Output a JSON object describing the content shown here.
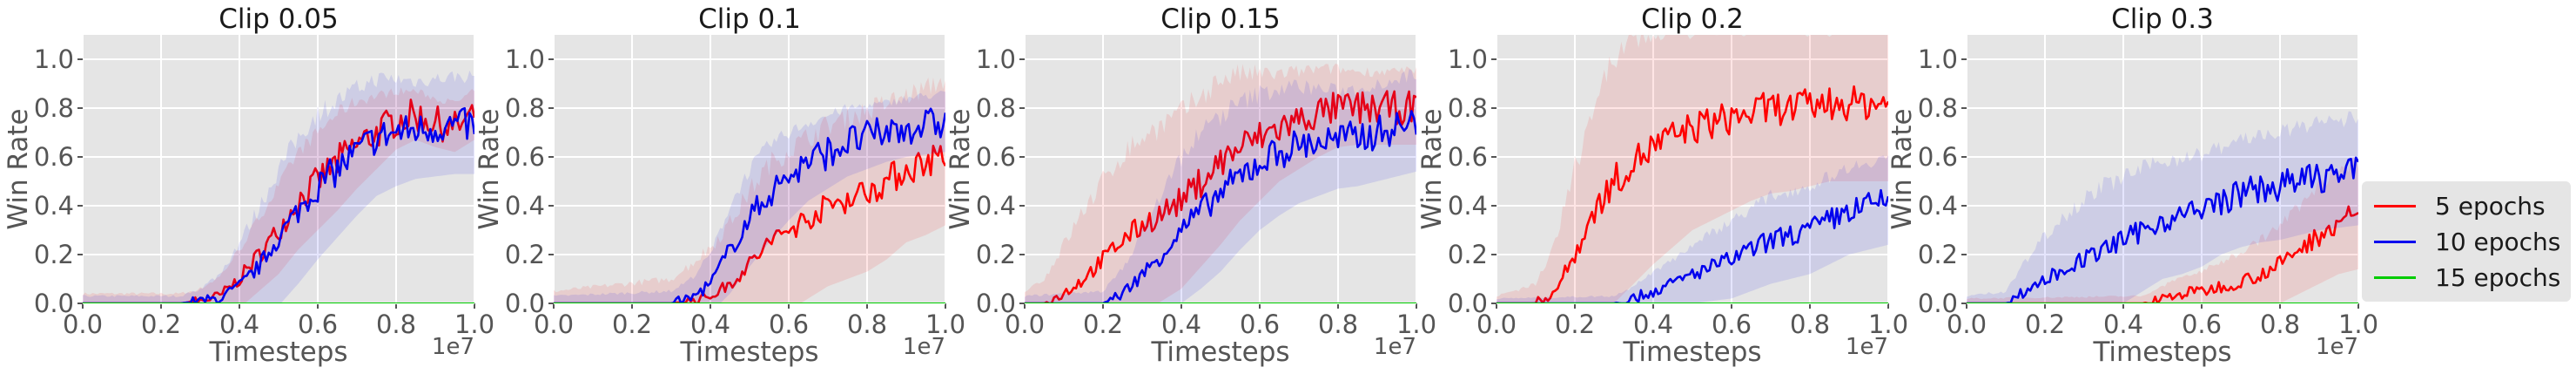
{
  "chart_data": [
    {
      "type": "line",
      "title": "Clip 0.05",
      "xlabel": "Timesteps",
      "ylabel": "Win Rate",
      "x_multiplier": "1e7",
      "xlim": [
        0,
        1.0
      ],
      "ylim": [
        0,
        1.1
      ],
      "xticks": [
        "0.0",
        "0.2",
        "0.4",
        "0.6",
        "0.8",
        "1.0"
      ],
      "yticks": [
        "0.0",
        "0.2",
        "0.4",
        "0.6",
        "0.8",
        "1.0"
      ],
      "series": [
        {
          "name": "5 epochs",
          "color": "#ff0000",
          "x": [
            0,
            0.25,
            0.3,
            0.35,
            0.4,
            0.45,
            0.5,
            0.55,
            0.6,
            0.65,
            0.7,
            0.75,
            0.8,
            0.85,
            0.9,
            0.95,
            1.0
          ],
          "y": [
            0,
            0,
            0.01,
            0.03,
            0.1,
            0.2,
            0.3,
            0.42,
            0.5,
            0.58,
            0.65,
            0.7,
            0.75,
            0.77,
            0.74,
            0.72,
            0.77
          ],
          "band": [
            0.04,
            0.04,
            0.05,
            0.08,
            0.12,
            0.15,
            0.18,
            0.2,
            0.2,
            0.2,
            0.18,
            0.15,
            0.12,
            0.1,
            0.1,
            0.1,
            0.1
          ]
        },
        {
          "name": "10 epochs",
          "color": "#0000ee",
          "x": [
            0,
            0.25,
            0.3,
            0.35,
            0.4,
            0.45,
            0.5,
            0.55,
            0.6,
            0.65,
            0.7,
            0.75,
            0.8,
            0.85,
            0.9,
            0.95,
            1.0
          ],
          "y": [
            0,
            0,
            0.01,
            0.02,
            0.07,
            0.15,
            0.27,
            0.38,
            0.48,
            0.55,
            0.62,
            0.68,
            0.7,
            0.71,
            0.72,
            0.73,
            0.73
          ],
          "band": [
            0.03,
            0.03,
            0.05,
            0.1,
            0.18,
            0.24,
            0.28,
            0.3,
            0.3,
            0.28,
            0.26,
            0.24,
            0.22,
            0.2,
            0.2,
            0.2,
            0.2
          ]
        },
        {
          "name": "15 epochs",
          "color": "#00cc00",
          "x": [
            0,
            1.0
          ],
          "y": [
            0,
            0
          ],
          "band": [
            0,
            0
          ]
        }
      ]
    },
    {
      "type": "line",
      "title": "Clip 0.1",
      "xlabel": "Timesteps",
      "ylabel": "Win Rate",
      "x_multiplier": "1e7",
      "xlim": [
        0,
        1.0
      ],
      "ylim": [
        0,
        1.1
      ],
      "xticks": [
        "0.0",
        "0.2",
        "0.4",
        "0.6",
        "0.8",
        "1.0"
      ],
      "yticks": [
        "0.0",
        "0.2",
        "0.4",
        "0.6",
        "0.8",
        "1.0"
      ],
      "series": [
        {
          "name": "5 epochs",
          "color": "#ff0000",
          "x": [
            0,
            0.3,
            0.35,
            0.4,
            0.45,
            0.5,
            0.55,
            0.6,
            0.65,
            0.7,
            0.75,
            0.8,
            0.85,
            0.9,
            0.95,
            1.0
          ],
          "y": [
            0,
            0,
            0.01,
            0.03,
            0.08,
            0.16,
            0.25,
            0.3,
            0.35,
            0.4,
            0.43,
            0.46,
            0.5,
            0.55,
            0.58,
            0.62
          ],
          "band": [
            0.05,
            0.1,
            0.15,
            0.2,
            0.25,
            0.3,
            0.32,
            0.33,
            0.33,
            0.33,
            0.33,
            0.33,
            0.32,
            0.3,
            0.3,
            0.3
          ]
        },
        {
          "name": "10 epochs",
          "color": "#0000ee",
          "x": [
            0,
            0.3,
            0.35,
            0.4,
            0.45,
            0.5,
            0.55,
            0.6,
            0.65,
            0.7,
            0.75,
            0.8,
            0.85,
            0.9,
            0.95,
            1.0
          ],
          "y": [
            0,
            0,
            0.02,
            0.08,
            0.22,
            0.35,
            0.45,
            0.52,
            0.58,
            0.62,
            0.66,
            0.68,
            0.7,
            0.72,
            0.73,
            0.74
          ],
          "band": [
            0.03,
            0.05,
            0.08,
            0.12,
            0.18,
            0.2,
            0.2,
            0.18,
            0.16,
            0.15,
            0.14,
            0.13,
            0.12,
            0.12,
            0.12,
            0.12
          ]
        },
        {
          "name": "15 epochs",
          "color": "#00cc00",
          "x": [
            0,
            1.0
          ],
          "y": [
            0,
            0
          ],
          "band": [
            0,
            0
          ]
        }
      ]
    },
    {
      "type": "line",
      "title": "Clip 0.15",
      "xlabel": "Timesteps",
      "ylabel": "Win Rate",
      "x_multiplier": "1e7",
      "xlim": [
        0,
        1.0
      ],
      "ylim": [
        0,
        1.1
      ],
      "xticks": [
        "0.0",
        "0.2",
        "0.4",
        "0.6",
        "0.8",
        "1.0"
      ],
      "yticks": [
        "0.0",
        "0.2",
        "0.4",
        "0.6",
        "0.8",
        "1.0"
      ],
      "series": [
        {
          "name": "5 epochs",
          "color": "#ff0000",
          "x": [
            0,
            0.05,
            0.1,
            0.15,
            0.2,
            0.25,
            0.3,
            0.35,
            0.4,
            0.45,
            0.5,
            0.55,
            0.6,
            0.65,
            0.7,
            0.75,
            0.8,
            0.85,
            0.9,
            0.95,
            1.0
          ],
          "y": [
            0,
            0,
            0.04,
            0.1,
            0.18,
            0.26,
            0.32,
            0.37,
            0.42,
            0.5,
            0.58,
            0.64,
            0.68,
            0.72,
            0.75,
            0.78,
            0.8,
            0.8,
            0.8,
            0.8,
            0.8
          ],
          "band": [
            0.05,
            0.1,
            0.2,
            0.28,
            0.32,
            0.35,
            0.36,
            0.36,
            0.36,
            0.35,
            0.34,
            0.3,
            0.26,
            0.22,
            0.2,
            0.18,
            0.16,
            0.15,
            0.15,
            0.15,
            0.15
          ]
        },
        {
          "name": "10 epochs",
          "color": "#0000ee",
          "x": [
            0,
            0.2,
            0.25,
            0.3,
            0.35,
            0.4,
            0.45,
            0.5,
            0.55,
            0.6,
            0.65,
            0.7,
            0.75,
            0.8,
            0.85,
            0.9,
            0.95,
            1.0
          ],
          "y": [
            0,
            0,
            0.04,
            0.12,
            0.2,
            0.3,
            0.38,
            0.45,
            0.52,
            0.58,
            0.62,
            0.65,
            0.66,
            0.67,
            0.68,
            0.7,
            0.72,
            0.74
          ],
          "band": [
            0.03,
            0.05,
            0.1,
            0.18,
            0.25,
            0.3,
            0.32,
            0.32,
            0.3,
            0.28,
            0.26,
            0.24,
            0.22,
            0.2,
            0.2,
            0.2,
            0.2,
            0.2
          ]
        },
        {
          "name": "15 epochs",
          "color": "#00cc00",
          "x": [
            0,
            1.0
          ],
          "y": [
            0,
            0
          ],
          "band": [
            0,
            0
          ]
        }
      ]
    },
    {
      "type": "line",
      "title": "Clip 0.2",
      "xlabel": "Timesteps",
      "ylabel": "Win Rate",
      "x_multiplier": "1e7",
      "xlim": [
        0,
        1.0
      ],
      "ylim": [
        0,
        1.1
      ],
      "xticks": [
        "0.0",
        "0.2",
        "0.4",
        "0.6",
        "0.8",
        "1.0"
      ],
      "yticks": [
        "0.0",
        "0.2",
        "0.4",
        "0.6",
        "0.8",
        "1.0"
      ],
      "series": [
        {
          "name": "5 epochs",
          "color": "#ff0000",
          "x": [
            0,
            0.1,
            0.15,
            0.2,
            0.25,
            0.3,
            0.35,
            0.4,
            0.45,
            0.5,
            0.55,
            0.6,
            0.65,
            0.7,
            0.75,
            0.8,
            0.85,
            0.9,
            0.95,
            1.0
          ],
          "y": [
            0,
            0,
            0.05,
            0.2,
            0.38,
            0.5,
            0.58,
            0.64,
            0.68,
            0.72,
            0.74,
            0.76,
            0.78,
            0.8,
            0.8,
            0.81,
            0.82,
            0.82,
            0.82,
            0.82
          ],
          "band": [
            0.03,
            0.08,
            0.2,
            0.35,
            0.45,
            0.5,
            0.5,
            0.48,
            0.45,
            0.42,
            0.4,
            0.38,
            0.36,
            0.35,
            0.34,
            0.33,
            0.32,
            0.32,
            0.32,
            0.32
          ]
        },
        {
          "name": "10 epochs",
          "color": "#0000ee",
          "x": [
            0,
            0.3,
            0.35,
            0.4,
            0.45,
            0.5,
            0.55,
            0.6,
            0.65,
            0.7,
            0.75,
            0.8,
            0.85,
            0.9,
            0.95,
            1.0
          ],
          "y": [
            0,
            0,
            0.02,
            0.05,
            0.08,
            0.12,
            0.15,
            0.18,
            0.22,
            0.26,
            0.28,
            0.3,
            0.34,
            0.38,
            0.4,
            0.42
          ],
          "band": [
            0.02,
            0.03,
            0.05,
            0.08,
            0.1,
            0.12,
            0.14,
            0.16,
            0.17,
            0.18,
            0.18,
            0.18,
            0.18,
            0.18,
            0.18,
            0.18
          ]
        },
        {
          "name": "15 epochs",
          "color": "#00cc00",
          "x": [
            0,
            1.0
          ],
          "y": [
            0,
            0
          ],
          "band": [
            0,
            0
          ]
        }
      ]
    },
    {
      "type": "line",
      "title": "Clip 0.3",
      "xlabel": "Timesteps",
      "ylabel": "Win Rate",
      "x_multiplier": "1e7",
      "xlim": [
        0,
        1.0
      ],
      "ylim": [
        0,
        1.1
      ],
      "xticks": [
        "0.0",
        "0.2",
        "0.4",
        "0.6",
        "0.8",
        "1.0"
      ],
      "yticks": [
        "0.0",
        "0.2",
        "0.4",
        "0.6",
        "0.8",
        "1.0"
      ],
      "series": [
        {
          "name": "5 epochs",
          "color": "#ff0000",
          "x": [
            0,
            0.45,
            0.5,
            0.55,
            0.6,
            0.65,
            0.7,
            0.75,
            0.8,
            0.85,
            0.9,
            0.95,
            1.0
          ],
          "y": [
            0,
            0,
            0.02,
            0.04,
            0.05,
            0.07,
            0.09,
            0.12,
            0.16,
            0.22,
            0.28,
            0.34,
            0.36
          ],
          "band": [
            0.02,
            0.03,
            0.05,
            0.07,
            0.08,
            0.1,
            0.12,
            0.14,
            0.16,
            0.18,
            0.2,
            0.22,
            0.22
          ]
        },
        {
          "name": "10 epochs",
          "color": "#0000ee",
          "x": [
            0,
            0.1,
            0.15,
            0.2,
            0.25,
            0.3,
            0.35,
            0.4,
            0.45,
            0.5,
            0.55,
            0.6,
            0.65,
            0.7,
            0.75,
            0.8,
            0.85,
            0.9,
            0.95,
            1.0
          ],
          "y": [
            0,
            0,
            0.05,
            0.1,
            0.14,
            0.18,
            0.22,
            0.26,
            0.3,
            0.34,
            0.36,
            0.38,
            0.42,
            0.45,
            0.47,
            0.48,
            0.5,
            0.52,
            0.53,
            0.54
          ],
          "band": [
            0.03,
            0.05,
            0.12,
            0.18,
            0.22,
            0.25,
            0.26,
            0.26,
            0.25,
            0.24,
            0.24,
            0.23,
            0.22,
            0.22,
            0.22,
            0.22,
            0.22,
            0.22,
            0.22,
            0.22
          ]
        },
        {
          "name": "15 epochs",
          "color": "#00cc00",
          "x": [
            0,
            1.0
          ],
          "y": [
            0,
            0
          ],
          "band": [
            0,
            0
          ]
        }
      ]
    }
  ],
  "legend": {
    "placement": "right",
    "items": [
      {
        "label": "5 epochs",
        "color": "#ff0000"
      },
      {
        "label": "10 epochs",
        "color": "#0000ee"
      },
      {
        "label": "15 epochs",
        "color": "#00cc00"
      }
    ]
  },
  "style": {
    "panel_bg": "#e5e5e5",
    "grid": "#ffffff",
    "tick_text": "#555555",
    "text": "#1a1a1a"
  }
}
